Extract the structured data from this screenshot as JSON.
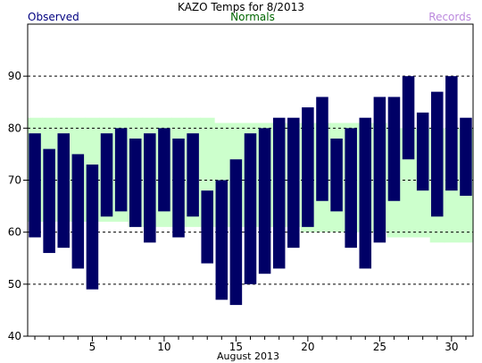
{
  "chart_data": {
    "type": "bar",
    "title": "KAZO Temps for  8/2013",
    "xlabel": "August 2013",
    "ylabel": "",
    "legend": {
      "observed": "Observed",
      "normals": "Normals",
      "records": "Records"
    },
    "colors": {
      "observed": "#000066",
      "normals": "#ccffcc",
      "observed_label": "#000080",
      "normals_label": "#006600",
      "records_label": "#bb88dd"
    },
    "xlim": [
      0.5,
      31.5
    ],
    "ylim": [
      40,
      100
    ],
    "yticks": [
      40,
      50,
      60,
      70,
      80,
      90
    ],
    "xticks_labeled": [
      5,
      10,
      15,
      20,
      25,
      30
    ],
    "grid": "horizontal-dashed",
    "days": [
      1,
      2,
      3,
      4,
      5,
      6,
      7,
      8,
      9,
      10,
      11,
      12,
      13,
      14,
      15,
      16,
      17,
      18,
      19,
      20,
      21,
      22,
      23,
      24,
      25,
      26,
      27,
      28,
      29,
      30,
      31
    ],
    "series": [
      {
        "name": "Observed",
        "high": [
          79,
          76,
          79,
          75,
          73,
          79,
          80,
          78,
          79,
          80,
          78,
          79,
          68,
          70,
          74,
          79,
          80,
          82,
          82,
          84,
          86,
          78,
          80,
          82,
          86,
          86,
          90,
          83,
          87,
          90,
          82
        ],
        "low": [
          59,
          56,
          57,
          53,
          49,
          63,
          64,
          61,
          58,
          64,
          59,
          63,
          54,
          47,
          46,
          50,
          52,
          53,
          57,
          61,
          66,
          64,
          57,
          53,
          58,
          66,
          74,
          68,
          63,
          68,
          67
        ]
      },
      {
        "name": "Normals",
        "high": [
          82,
          82,
          82,
          82,
          82,
          82,
          82,
          82,
          82,
          82,
          82,
          82,
          82,
          81,
          81,
          81,
          81,
          81,
          81,
          81,
          81,
          81,
          81,
          81,
          81,
          80,
          80,
          80,
          80,
          80,
          80
        ],
        "low": [
          62,
          62,
          62,
          62,
          62,
          62,
          62,
          61,
          61,
          61,
          61,
          61,
          61,
          61,
          61,
          61,
          61,
          61,
          61,
          60,
          60,
          60,
          60,
          60,
          60,
          59,
          59,
          59,
          58,
          58,
          58
        ]
      }
    ]
  }
}
